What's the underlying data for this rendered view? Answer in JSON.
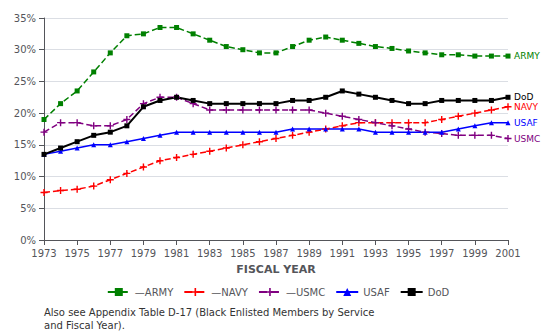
{
  "chart_data": {
    "type": "line",
    "xlabel": "FISCAL YEAR",
    "annotation": "Also see Appendix Table D-17 (Black Enlisted Members by Service\nand Fiscal Year).",
    "x": [
      1973,
      1974,
      1975,
      1976,
      1977,
      1978,
      1979,
      1980,
      1981,
      1982,
      1983,
      1984,
      1985,
      1986,
      1987,
      1988,
      1989,
      1990,
      1991,
      1992,
      1993,
      1994,
      1995,
      1996,
      1997,
      1998,
      1999,
      2000,
      2001
    ],
    "series": [
      {
        "name": "—ARMY",
        "end_label": "ARMY",
        "color": "#008000",
        "marker": "square",
        "line_style": "dashed",
        "values": [
          19.0,
          21.5,
          23.5,
          26.5,
          29.5,
          32.2,
          32.5,
          33.5,
          33.5,
          32.5,
          31.5,
          30.5,
          30.0,
          29.5,
          29.5,
          30.5,
          31.5,
          32.0,
          31.5,
          31.0,
          30.5,
          30.2,
          29.8,
          29.5,
          29.2,
          29.2,
          29.0,
          29.0,
          29.0
        ]
      },
      {
        "name": "—NAVY",
        "end_label": "NAVY",
        "color": "#FF0000",
        "marker": "plus",
        "line_style": "dashed",
        "values": [
          7.5,
          7.8,
          8.0,
          8.5,
          9.5,
          10.5,
          11.5,
          12.5,
          13.0,
          13.5,
          14.0,
          14.5,
          15.0,
          15.5,
          16.0,
          16.5,
          17.0,
          17.5,
          18.0,
          18.5,
          18.5,
          18.5,
          18.5,
          18.5,
          19.0,
          19.5,
          20.0,
          20.5,
          21.0
        ]
      },
      {
        "name": "—USMC",
        "end_label": "USMC",
        "color": "#800080",
        "marker": "plus",
        "line_style": "dashed",
        "values": [
          17.0,
          18.5,
          18.5,
          18.0,
          18.0,
          19.0,
          21.5,
          22.5,
          22.5,
          21.5,
          20.5,
          20.5,
          20.5,
          20.5,
          20.5,
          20.5,
          20.5,
          20.0,
          19.5,
          19.0,
          18.5,
          18.0,
          17.5,
          17.0,
          16.8,
          16.5,
          16.5,
          16.5,
          16.0
        ]
      },
      {
        "name": "USAF",
        "end_label": "USAF",
        "color": "#0000FF",
        "marker": "triangle",
        "line_style": "solid",
        "values": [
          13.5,
          14.0,
          14.5,
          15.0,
          15.0,
          15.5,
          16.0,
          16.5,
          17.0,
          17.0,
          17.0,
          17.0,
          17.0,
          17.0,
          17.0,
          17.5,
          17.5,
          17.5,
          17.5,
          17.5,
          17.0,
          17.0,
          17.0,
          17.0,
          17.0,
          17.5,
          18.0,
          18.5,
          18.5
        ]
      },
      {
        "name": "DoD",
        "end_label": "DoD",
        "color": "#000000",
        "marker": "square",
        "line_style": "solid",
        "values": [
          13.5,
          14.5,
          15.5,
          16.5,
          17.0,
          18.0,
          21.0,
          22.0,
          22.5,
          22.0,
          21.5,
          21.5,
          21.5,
          21.5,
          21.5,
          22.0,
          22.0,
          22.5,
          23.5,
          23.0,
          22.5,
          22.0,
          21.5,
          21.5,
          22.0,
          22.0,
          22.0,
          22.0,
          22.5
        ]
      }
    ],
    "xlim": [
      1973,
      2001
    ],
    "xticks": [
      1973,
      1975,
      1977,
      1979,
      1981,
      1983,
      1985,
      1987,
      1989,
      1991,
      1993,
      1995,
      1997,
      1999,
      2001
    ],
    "ylim": [
      0,
      35
    ],
    "yticks": [
      {
        "value": 0,
        "label": "0%"
      },
      {
        "value": 5,
        "label": "5%"
      },
      {
        "value": 10,
        "label": "10%"
      },
      {
        "value": 15,
        "label": "15%"
      },
      {
        "value": 20,
        "label": "20%"
      },
      {
        "value": 25,
        "label": "25%"
      },
      {
        "value": 30,
        "label": "30%"
      },
      {
        "value": 35,
        "label": "35%"
      }
    ],
    "grid": true,
    "legend": "bottom"
  }
}
